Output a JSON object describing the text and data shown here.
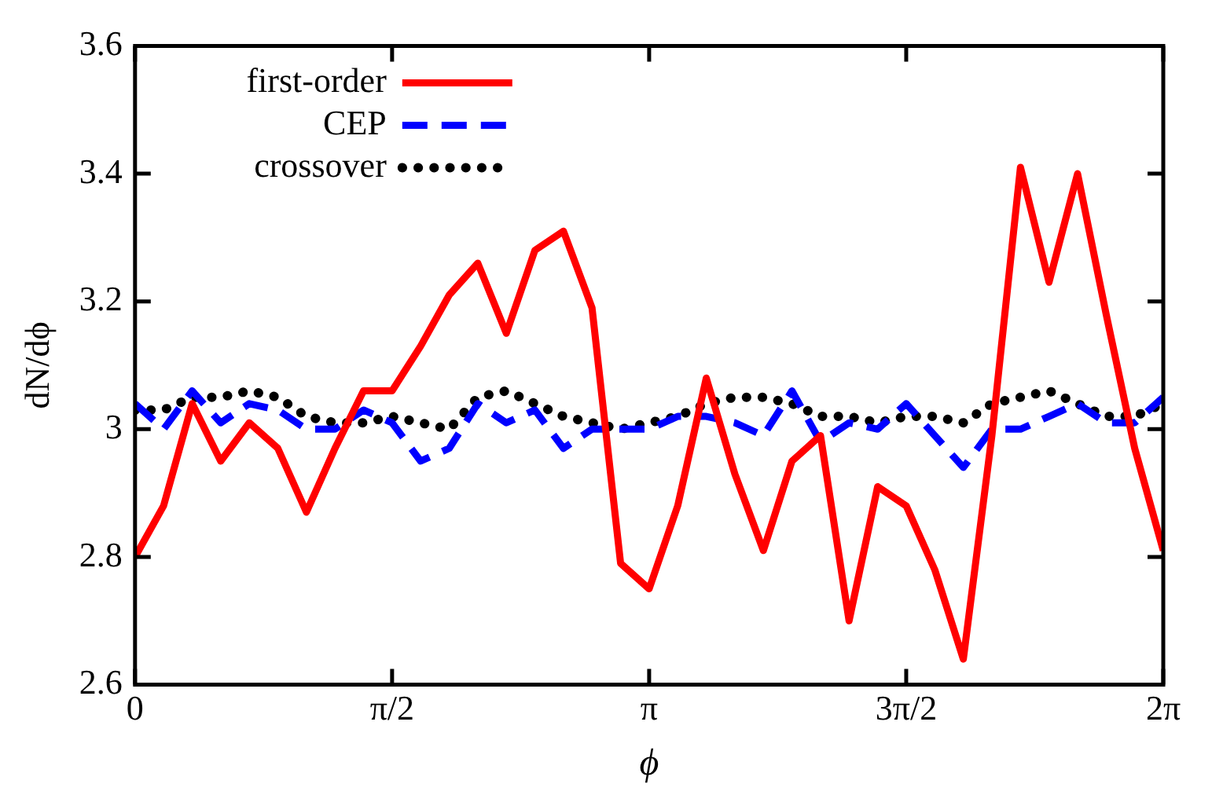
{
  "chart_data": {
    "type": "line",
    "xlabel": "ϕ",
    "ylabel": "dN/dϕ",
    "legend": "top left",
    "grid": false,
    "marker": "none",
    "x": [
      0,
      0.1745,
      0.3491,
      0.5236,
      0.6981,
      0.8727,
      1.0472,
      1.2217,
      1.3963,
      1.5708,
      1.7453,
      1.9199,
      2.0944,
      2.2689,
      2.4435,
      2.618,
      2.7925,
      2.9671,
      3.1416,
      3.3161,
      3.4907,
      3.6652,
      3.8397,
      4.0143,
      4.1888,
      4.3633,
      4.5379,
      4.7124,
      4.8869,
      5.0615,
      5.236,
      5.4105,
      5.5851,
      5.7596,
      5.9341,
      6.1087,
      6.2832
    ],
    "xlim": [
      0,
      6.2832
    ],
    "xticks": [
      {
        "value": 0,
        "label": "0"
      },
      {
        "value": 1.5708,
        "label": "π/2"
      },
      {
        "value": 3.1416,
        "label": "π"
      },
      {
        "value": 4.7124,
        "label": "3π/2"
      },
      {
        "value": 6.2832,
        "label": "2π"
      }
    ],
    "ylim": [
      2.6,
      3.6
    ],
    "yticks": [
      {
        "value": 2.6,
        "label": "2.6"
      },
      {
        "value": 2.8,
        "label": "2.8"
      },
      {
        "value": 3,
        "label": "3"
      },
      {
        "value": 3.2,
        "label": "3.2"
      },
      {
        "value": 3.4,
        "label": "3.4"
      },
      {
        "value": 3.6,
        "label": "3.6"
      }
    ],
    "series": [
      {
        "name": "first-order",
        "color": "#ff0000",
        "line_style": "solid",
        "values": [
          2.8,
          2.88,
          3.04,
          2.95,
          3.01,
          2.97,
          2.87,
          2.97,
          3.06,
          3.06,
          3.13,
          3.21,
          3.26,
          3.15,
          3.28,
          3.31,
          3.19,
          2.79,
          2.75,
          2.88,
          3.08,
          2.93,
          2.81,
          2.95,
          2.99,
          2.7,
          2.91,
          2.88,
          2.78,
          2.64,
          2.99,
          3.41,
          3.23,
          3.4,
          3.18,
          2.97,
          2.81
        ]
      },
      {
        "name": "CEP",
        "color": "#0000ff",
        "line_style": "dashed",
        "values": [
          3.04,
          3.0,
          3.06,
          3.01,
          3.04,
          3.03,
          3.0,
          3.0,
          3.03,
          3.01,
          2.95,
          2.97,
          3.04,
          3.01,
          3.03,
          2.97,
          3.0,
          3.0,
          3.0,
          3.02,
          3.02,
          3.01,
          2.99,
          3.06,
          2.98,
          3.01,
          3.0,
          3.04,
          2.99,
          2.94,
          3.0,
          3.0,
          3.02,
          3.04,
          3.01,
          3.01,
          3.05
        ]
      },
      {
        "name": "crossover",
        "color": "#000000",
        "line_style": "dotted",
        "values": [
          3.03,
          3.03,
          3.05,
          3.05,
          3.06,
          3.05,
          3.02,
          3.01,
          3.01,
          3.02,
          3.01,
          3.0,
          3.05,
          3.06,
          3.04,
          3.02,
          3.01,
          3.0,
          3.01,
          3.02,
          3.04,
          3.05,
          3.05,
          3.04,
          3.02,
          3.02,
          3.01,
          3.02,
          3.02,
          3.01,
          3.04,
          3.05,
          3.06,
          3.04,
          3.02,
          3.02,
          3.04
        ]
      }
    ]
  }
}
